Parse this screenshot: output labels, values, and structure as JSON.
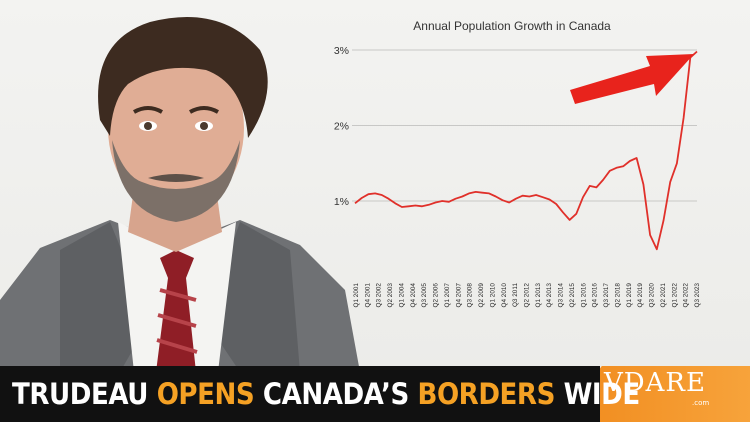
{
  "chart_data": {
    "type": "line",
    "title": "Annual Population Growth in Canada",
    "xlabel": "",
    "ylabel": "",
    "ylim": [
      0.3,
      3.0
    ],
    "yticks": [
      1,
      2,
      3
    ],
    "ytick_labels": [
      "1%",
      "2%",
      "3%"
    ],
    "grid": true,
    "x_tick_labels": [
      "Q1 2001",
      "Q4 2001",
      "Q3 2002",
      "Q2 2003",
      "Q1 2004",
      "Q4 2004",
      "Q3 2005",
      "Q2 2006",
      "Q1 2007",
      "Q4 2007",
      "Q3 2008",
      "Q2 2009",
      "Q1 2010",
      "Q4 2010",
      "Q3 2011",
      "Q2 2012",
      "Q1 2013",
      "Q4 2013",
      "Q3 2014",
      "Q2 2015",
      "Q1 2016",
      "Q4 2016",
      "Q3 2017",
      "Q2 2018",
      "Q1 2019",
      "Q4 2019",
      "Q3 2020",
      "Q2 2021",
      "Q1 2022",
      "Q4 2022",
      "Q3 2023"
    ],
    "series": [
      {
        "color": "#e0302a",
        "values": [
          0.97,
          1.04,
          1.09,
          1.1,
          1.08,
          1.03,
          0.97,
          0.92,
          0.93,
          0.94,
          0.93,
          0.95,
          0.98,
          1.0,
          0.99,
          1.03,
          1.06,
          1.1,
          1.12,
          1.11,
          1.1,
          1.06,
          1.01,
          0.98,
          1.03,
          1.07,
          1.06,
          1.08,
          1.05,
          1.02,
          0.96,
          0.85,
          0.75,
          0.83,
          1.05,
          1.2,
          1.18,
          1.28,
          1.4,
          1.44,
          1.46,
          1.53,
          1.57,
          1.22,
          0.55,
          0.36,
          0.74,
          1.25,
          1.5,
          2.1,
          2.9,
          2.98
        ]
      }
    ]
  },
  "banner": {
    "word1": "TRUDEAU",
    "word2": "OPENS",
    "word3": "CANADA’S",
    "word4": "BORDERS",
    "word5": "WIDE"
  },
  "logo": {
    "text": "VDARE",
    "sub": ".com"
  }
}
